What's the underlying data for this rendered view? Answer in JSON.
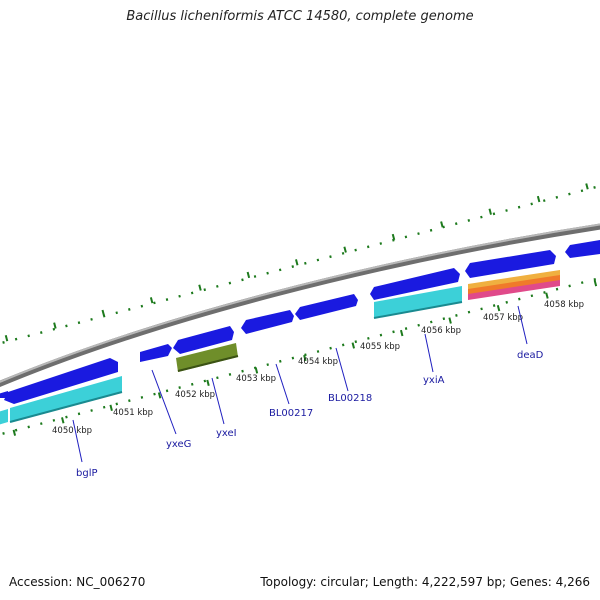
{
  "header": {
    "title": "Bacillus licheniformis ATCC 14580, complete genome"
  },
  "footer": {
    "accession": "Accession: NC_006270",
    "summary": "Topology: circular; Length: 4,222,597 bp; Genes: 4,266"
  },
  "scale_labels": [
    {
      "id": "kbp-4050",
      "text": "4050 kbp"
    },
    {
      "id": "kbp-4051",
      "text": "4051 kbp"
    },
    {
      "id": "kbp-4052",
      "text": "4052 kbp"
    },
    {
      "id": "kbp-4053",
      "text": "4053 kbp"
    },
    {
      "id": "kbp-4054",
      "text": "4054 kbp"
    },
    {
      "id": "kbp-4055",
      "text": "4055 kbp"
    },
    {
      "id": "kbp-4056",
      "text": "4056 kbp"
    },
    {
      "id": "kbp-4057",
      "text": "4057 kbp"
    },
    {
      "id": "kbp-4058",
      "text": "4058 kbp"
    }
  ],
  "gene_labels": [
    "bglP",
    "yxeG",
    "yxeI",
    "BL00217",
    "BL00218",
    "yxiA",
    "deaD"
  ],
  "colors": {
    "backbone": "#8c8c8c",
    "gene_feature": "#1a1ae0",
    "cds_feature": "#3cd0d8",
    "highlight_feature": "#6f8e2a",
    "deaD_bands": [
      "#e04a8a",
      "#f07a2a",
      "#f0b040"
    ],
    "ticks": "#1d7a1d",
    "label_lines": "#2020c0",
    "label_text": "#1a1aa0"
  }
}
